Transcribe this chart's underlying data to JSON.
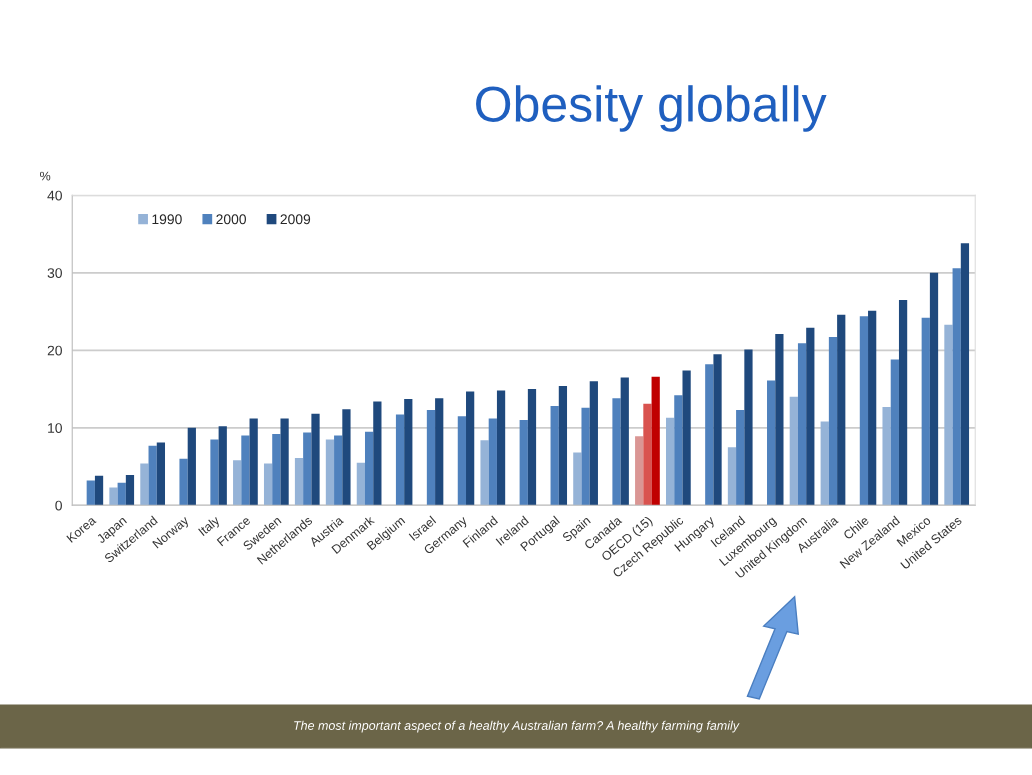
{
  "chart_data": {
    "type": "bar",
    "title": "Obesity globally",
    "ylabel": "%",
    "categories": [
      "Korea",
      "Japan",
      "Switzerland",
      "Norway",
      "Italy",
      "France",
      "Sweden",
      "Netherlands",
      "Austria",
      "Denmark",
      "Belgium",
      "Israel",
      "Germany",
      "Finland",
      "Ireland",
      "Portugal",
      "Spain",
      "Canada",
      "OECD (15)",
      "Czech Republic",
      "Hungary",
      "Iceland",
      "Luxembourg",
      "United Kingdom",
      "Australia",
      "Chile",
      "New Zealand",
      "Mexico",
      "United States"
    ],
    "series": [
      {
        "name": "1990",
        "color": "#95b3d7",
        "colors": [
          "#95b3d7",
          "#95b3d7",
          "#95b3d7",
          "#95b3d7",
          "#95b3d7",
          "#95b3d7",
          "#95b3d7",
          "#95b3d7",
          "#95b3d7",
          "#95b3d7",
          "#95b3d7",
          "#95b3d7",
          "#95b3d7",
          "#95b3d7",
          "#95b3d7",
          "#95b3d7",
          "#95b3d7",
          "#95b3d7",
          "#da9694",
          "#95b3d7",
          "#95b3d7",
          "#95b3d7",
          "#95b3d7",
          "#95b3d7",
          "#95b3d7",
          "#95b3d7",
          "#95b3d7",
          "#95b3d7",
          "#95b3d7"
        ],
        "values": [
          null,
          2.3,
          5.4,
          null,
          null,
          5.8,
          5.4,
          6.1,
          8.5,
          5.5,
          null,
          null,
          null,
          8.4,
          null,
          null,
          6.8,
          null,
          8.9,
          11.3,
          null,
          7.5,
          null,
          14.0,
          10.8,
          null,
          12.7,
          null,
          23.3
        ]
      },
      {
        "name": "2000",
        "color": "#4f81bd",
        "colors": [
          "#4f81bd",
          "#4f81bd",
          "#4f81bd",
          "#4f81bd",
          "#4f81bd",
          "#4f81bd",
          "#4f81bd",
          "#4f81bd",
          "#4f81bd",
          "#4f81bd",
          "#4f81bd",
          "#4f81bd",
          "#4f81bd",
          "#4f81bd",
          "#4f81bd",
          "#4f81bd",
          "#4f81bd",
          "#4f81bd",
          "#d9534f",
          "#4f81bd",
          "#4f81bd",
          "#4f81bd",
          "#4f81bd",
          "#4f81bd",
          "#4f81bd",
          "#4f81bd",
          "#4f81bd",
          "#4f81bd",
          "#4f81bd"
        ],
        "values": [
          3.2,
          2.9,
          7.7,
          6.0,
          8.5,
          9.0,
          9.2,
          9.4,
          9.0,
          9.5,
          11.7,
          12.3,
          11.5,
          11.2,
          11.0,
          12.8,
          12.6,
          13.8,
          13.1,
          14.2,
          18.2,
          12.3,
          16.1,
          20.9,
          21.7,
          24.4,
          18.8,
          24.2,
          30.6
        ]
      },
      {
        "name": "2009",
        "color": "#1f497d",
        "colors": [
          "#1f497d",
          "#1f497d",
          "#1f497d",
          "#1f497d",
          "#1f497d",
          "#1f497d",
          "#1f497d",
          "#1f497d",
          "#1f497d",
          "#1f497d",
          "#1f497d",
          "#1f497d",
          "#1f497d",
          "#1f497d",
          "#1f497d",
          "#1f497d",
          "#1f497d",
          "#1f497d",
          "#c00000",
          "#1f497d",
          "#1f497d",
          "#1f497d",
          "#1f497d",
          "#1f497d",
          "#1f497d",
          "#1f497d",
          "#1f497d",
          "#1f497d",
          "#1f497d"
        ],
        "values": [
          3.8,
          3.9,
          8.1,
          10.0,
          10.2,
          11.2,
          11.2,
          11.8,
          12.4,
          13.4,
          13.7,
          13.8,
          14.7,
          14.8,
          15.0,
          15.4,
          16.0,
          16.5,
          16.6,
          17.4,
          19.5,
          20.1,
          22.1,
          22.9,
          24.6,
          25.1,
          26.5,
          30.0,
          33.8
        ]
      }
    ],
    "ylim": [
      0,
      40
    ],
    "yticks": [
      0,
      10,
      20,
      30,
      40
    ],
    "grid": "y",
    "legend": "top left",
    "annotations": [
      "The most important aspect of a healthy Australian farm? A healthy farming family"
    ]
  }
}
